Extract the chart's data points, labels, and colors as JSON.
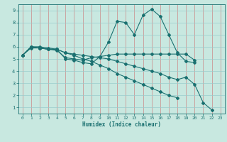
{
  "xlabel": "Humidex (Indice chaleur)",
  "ylabel": "",
  "xlim": [
    -0.5,
    23.5
  ],
  "ylim": [
    0.5,
    9.5
  ],
  "yticks": [
    1,
    2,
    3,
    4,
    5,
    6,
    7,
    8,
    9
  ],
  "xticks": [
    0,
    1,
    2,
    3,
    4,
    5,
    6,
    7,
    8,
    9,
    10,
    11,
    12,
    13,
    14,
    15,
    16,
    17,
    18,
    19,
    20,
    21,
    22,
    23
  ],
  "bg_color": "#c8e8e0",
  "line_color": "#1a7070",
  "grid_color_x": "#cc8888",
  "grid_color_y": "#99cccc",
  "curves": [
    {
      "x": [
        0,
        1,
        2,
        3,
        4,
        5,
        6,
        7,
        8,
        9,
        10,
        11,
        12,
        13,
        14,
        15,
        16,
        17,
        18,
        19,
        20
      ],
      "y": [
        5.3,
        6.0,
        6.0,
        5.9,
        5.8,
        5.0,
        4.9,
        4.7,
        4.6,
        5.2,
        6.4,
        8.1,
        8.0,
        7.0,
        8.6,
        9.1,
        8.5,
        7.0,
        5.5,
        4.8,
        4.7
      ]
    },
    {
      "x": [
        0,
        1,
        2,
        3,
        4,
        5,
        6,
        7,
        8,
        9,
        10,
        11,
        12,
        13,
        14,
        15,
        16,
        17,
        18,
        19,
        20
      ],
      "y": [
        5.3,
        6.0,
        5.9,
        5.8,
        5.7,
        5.1,
        5.0,
        4.9,
        5.1,
        5.2,
        5.3,
        5.4,
        5.4,
        5.4,
        5.4,
        5.4,
        5.4,
        5.4,
        5.4,
        5.4,
        4.9
      ]
    },
    {
      "x": [
        0,
        1,
        2,
        3,
        4,
        5,
        6,
        7,
        8,
        9,
        10,
        11,
        12,
        13,
        14,
        15,
        16,
        17,
        18,
        19,
        20,
        21,
        22
      ],
      "y": [
        5.3,
        6.0,
        5.9,
        5.8,
        5.8,
        5.5,
        5.4,
        5.3,
        5.2,
        5.1,
        5.0,
        4.8,
        4.6,
        4.4,
        4.2,
        4.0,
        3.8,
        3.5,
        3.3,
        3.5,
        2.9,
        1.4,
        0.8
      ]
    },
    {
      "x": [
        0,
        1,
        2,
        3,
        4,
        5,
        6,
        7,
        8,
        9,
        10,
        11,
        12,
        13,
        14,
        15,
        16,
        17,
        18
      ],
      "y": [
        5.3,
        5.9,
        5.9,
        5.8,
        5.8,
        5.5,
        5.3,
        5.0,
        4.8,
        4.5,
        4.2,
        3.8,
        3.5,
        3.2,
        2.9,
        2.6,
        2.3,
        2.0,
        1.8
      ]
    }
  ]
}
